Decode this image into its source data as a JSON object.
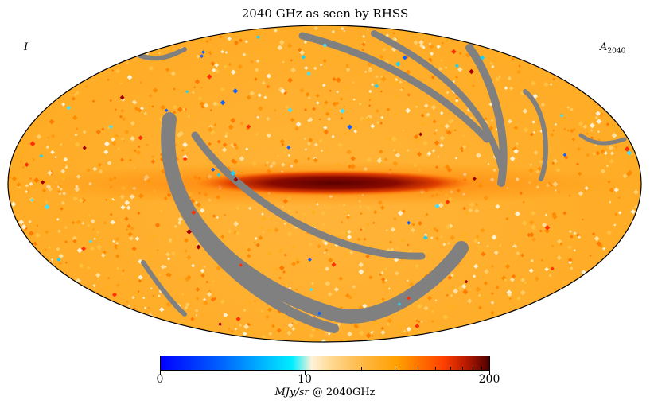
{
  "title": "2040 GHz as seen by RHSS",
  "corner_left": "I",
  "corner_right_base": "A",
  "corner_right_sub": "2040",
  "projection": "Mollweide",
  "colorbar": {
    "min_label": "0",
    "mid_label": "10",
    "max_label": "200",
    "unit_italic": "MJy/sr",
    "unit_suffix": "@ 2040GHz",
    "colors": {
      "low": "#0000ff",
      "cyan": "#00eeff",
      "pale": "#fff2d8",
      "orange": "#ffa000",
      "red": "#ff4000",
      "high": "#4a0000"
    }
  },
  "masked_color": "#808080"
}
